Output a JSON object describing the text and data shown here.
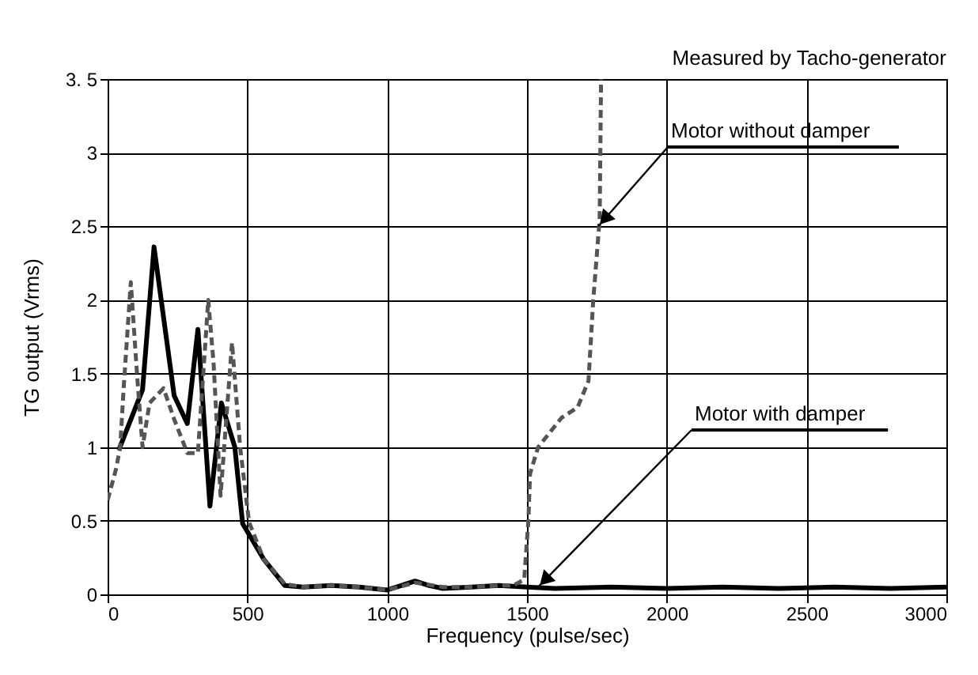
{
  "chart_data": {
    "type": "line",
    "subtitle": "Measured by Tacho-generator",
    "xlabel": "Frequency (pulse/sec)",
    "ylabel": "TG output (Vrms)",
    "xlim": [
      0,
      3000
    ],
    "xticks": [
      0,
      500,
      1000,
      1500,
      2000,
      2500,
      3000
    ],
    "ylim": [
      0,
      3.5
    ],
    "yticks": [
      0,
      {
        "value": 0.5,
        "label": "0.5"
      },
      1,
      {
        "value": 1.5,
        "label": "1.5"
      },
      2,
      {
        "value": 2.5,
        "label": "2.5"
      },
      3,
      {
        "value": 3.5,
        "label": "3. 5"
      }
    ],
    "grid": true,
    "marker": "none",
    "series": [
      {
        "color": "#000000",
        "line_style": "solid",
        "x": [
          40,
          125,
          166,
          238,
          285,
          323,
          366,
          407,
          455,
          483,
          558,
          634,
          700,
          800,
          900,
          1000,
          1050,
          1100,
          1150,
          1200,
          1300,
          1400,
          1500,
          1600,
          1800,
          2000,
          2200,
          2400,
          2600,
          2800,
          3000
        ],
        "values": [
          0.98,
          1.39,
          2.36,
          1.35,
          1.16,
          1.8,
          0.6,
          1.3,
          1.0,
          0.48,
          0.24,
          0.06,
          0.05,
          0.06,
          0.05,
          0.03,
          0.06,
          0.09,
          0.06,
          0.04,
          0.05,
          0.06,
          0.05,
          0.04,
          0.05,
          0.04,
          0.05,
          0.04,
          0.05,
          0.04,
          0.05
        ]
      },
      {
        "color": "#555555",
        "line_style": "dashed",
        "x": [
          0,
          30,
          45,
          58,
          83,
          105,
          125,
          150,
          200,
          238,
          285,
          323,
          360,
          379,
          404,
          445,
          474,
          506,
          558,
          634,
          700,
          800,
          900,
          1000,
          1100,
          1200,
          1300,
          1400,
          1450,
          1490,
          1505,
          1511,
          1540,
          1624,
          1681,
          1720,
          1737,
          1760,
          1765
        ],
        "values": [
          0.64,
          0.85,
          1.0,
          1.42,
          2.12,
          1.5,
          1.0,
          1.3,
          1.4,
          1.19,
          0.96,
          0.96,
          2.0,
          1.57,
          0.67,
          1.71,
          1.0,
          0.49,
          0.24,
          0.07,
          0.05,
          0.06,
          0.05,
          0.03,
          0.08,
          0.05,
          0.05,
          0.06,
          0.06,
          0.1,
          0.5,
          0.82,
          1.0,
          1.2,
          1.27,
          1.45,
          2.0,
          2.55,
          3.5
        ]
      }
    ],
    "annotations": [
      {
        "text": "Motor without damper",
        "x": 1755,
        "y": 2.5
      },
      {
        "text": "Motor with damper",
        "x": 1540,
        "y": 0.05
      }
    ]
  }
}
